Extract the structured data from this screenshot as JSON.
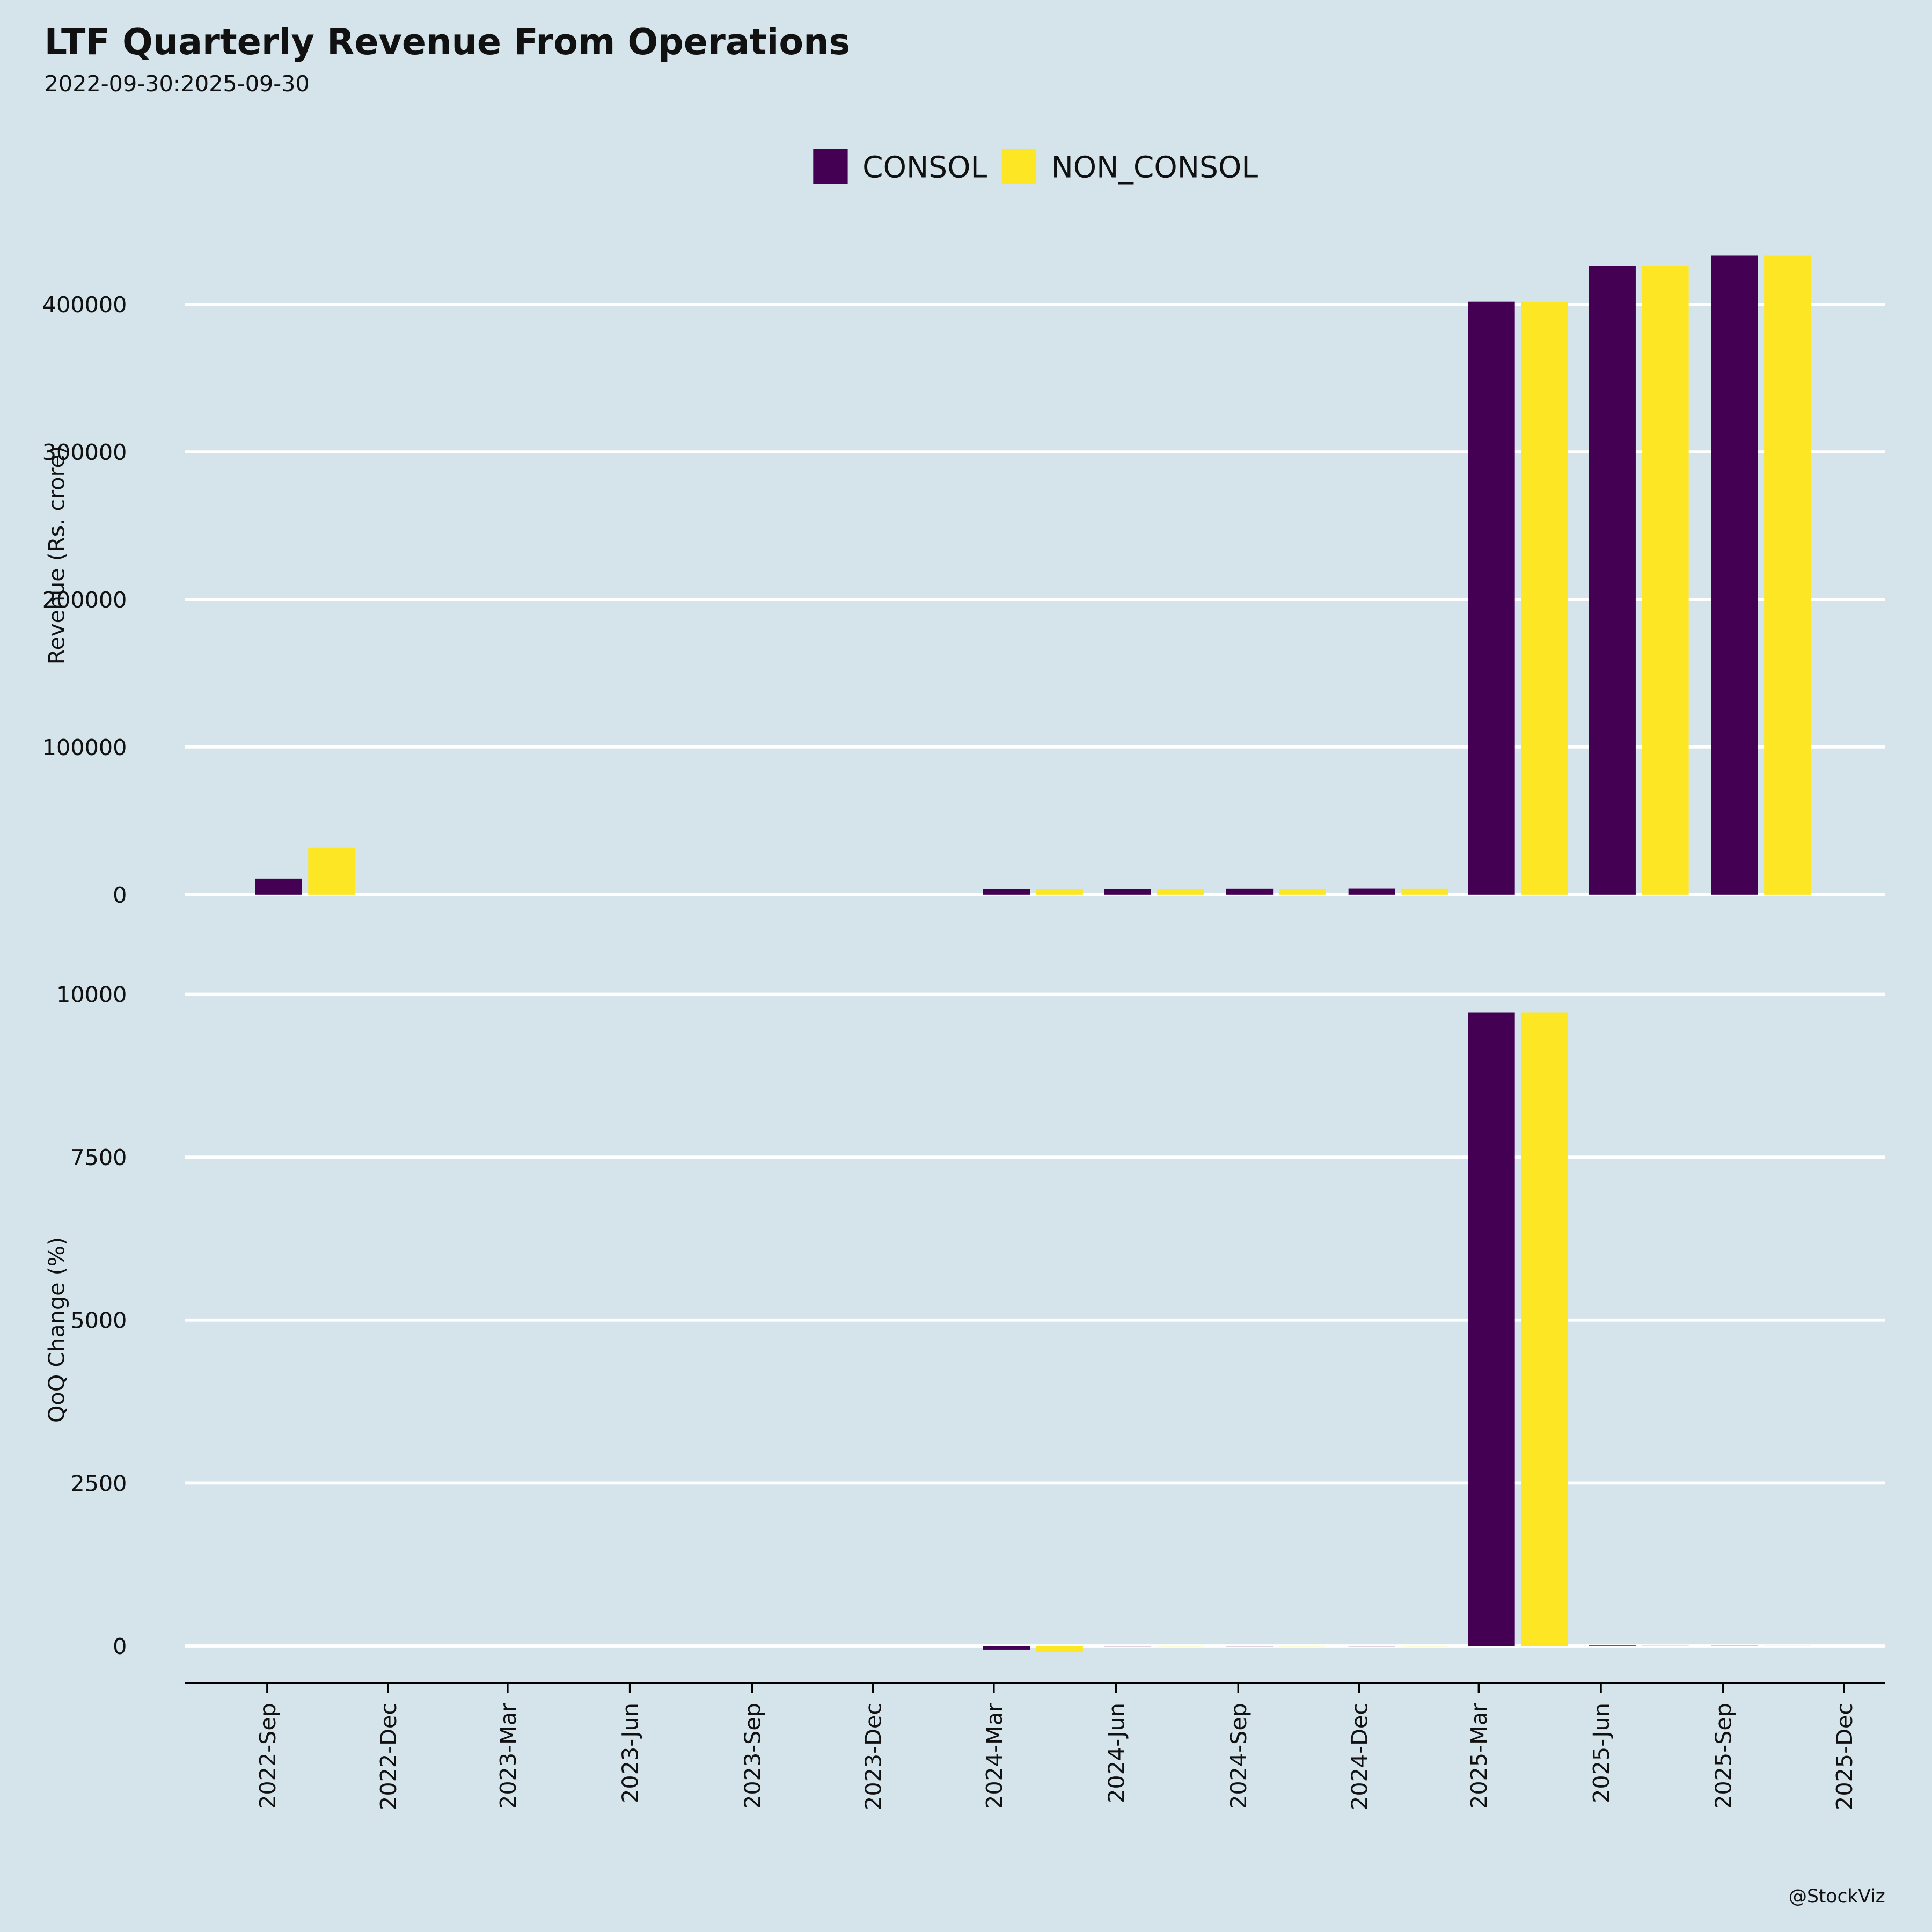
{
  "chart_data": {
    "type": "bar",
    "title": "LTF Quarterly Revenue From Operations",
    "subtitle": "2022-09-30:2025-09-30",
    "credit": "@StockViz",
    "legend": "top",
    "grid": true,
    "x": [
      "2022-09",
      "2024-03",
      "2024-06",
      "2024-09",
      "2024-12",
      "2025-03",
      "2025-06",
      "2025-09"
    ],
    "xlim": [
      "2022-07",
      "2026-01"
    ],
    "xticks": [
      {
        "value": "2022-09",
        "label": "2022-Sep"
      },
      {
        "value": "2022-12",
        "label": "2022-Dec"
      },
      {
        "value": "2023-03",
        "label": "2023-Mar"
      },
      {
        "value": "2023-06",
        "label": "2023-Jun"
      },
      {
        "value": "2023-09",
        "label": "2023-Sep"
      },
      {
        "value": "2023-12",
        "label": "2023-Dec"
      },
      {
        "value": "2024-03",
        "label": "2024-Mar"
      },
      {
        "value": "2024-06",
        "label": "2024-Jun"
      },
      {
        "value": "2024-09",
        "label": "2024-Sep"
      },
      {
        "value": "2024-12",
        "label": "2024-Dec"
      },
      {
        "value": "2025-03",
        "label": "2025-Mar"
      },
      {
        "value": "2025-06",
        "label": "2025-Jun"
      },
      {
        "value": "2025-09",
        "label": "2025-Sep"
      },
      {
        "value": "2025-12",
        "label": "2025-Dec"
      }
    ],
    "panels": [
      {
        "ylabel": "Revenue (Rs. crore)",
        "ylim": [
          0,
          460000
        ],
        "yticks": [
          0,
          100000,
          200000,
          300000,
          400000
        ],
        "series": [
          {
            "name": "CONSOL",
            "color": "#440154",
            "values": [
              10900,
              3900,
              3900,
              4000,
              4100,
              402000,
              426000,
              433000
            ]
          },
          {
            "name": "NON_CONSOL",
            "color": "#fde725",
            "values": [
              31700,
              3800,
              3800,
              3900,
              4000,
              402000,
              426000,
              433000
            ]
          }
        ]
      },
      {
        "ylabel": "QoQ Change (%)",
        "ylim": [
          -600,
          10300
        ],
        "yticks": [
          0,
          2500,
          5000,
          7500,
          10000
        ],
        "series": [
          {
            "name": "CONSOL",
            "color": "#440154",
            "values": [
              null,
              -57,
              -8,
              -6,
              -4,
              9720,
              6,
              2
            ]
          },
          {
            "name": "NON_CONSOL",
            "color": "#fde725",
            "values": [
              null,
              -95,
              -5,
              -3,
              -3,
              9720,
              6,
              2
            ]
          }
        ]
      }
    ]
  }
}
